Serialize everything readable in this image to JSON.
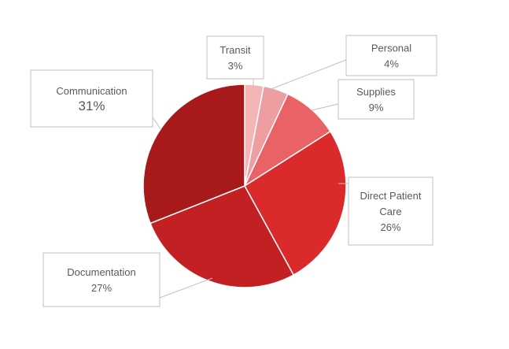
{
  "chart_data": {
    "type": "pie",
    "title": "",
    "categories": [
      "Transit",
      "Personal",
      "Supplies",
      "Direct Patient Care",
      "Documentation",
      "Communication"
    ],
    "values": [
      3,
      4,
      9,
      26,
      27,
      31
    ],
    "value_labels": [
      "3%",
      "4%",
      "9%",
      "26%",
      "27%",
      "31%"
    ],
    "colors": [
      "#F4B5B7",
      "#EE9EA1",
      "#E96266",
      "#DB2A2C",
      "#C32024",
      "#A8191B"
    ],
    "label_style": "callout boxes with leader lines",
    "legend": "none"
  }
}
